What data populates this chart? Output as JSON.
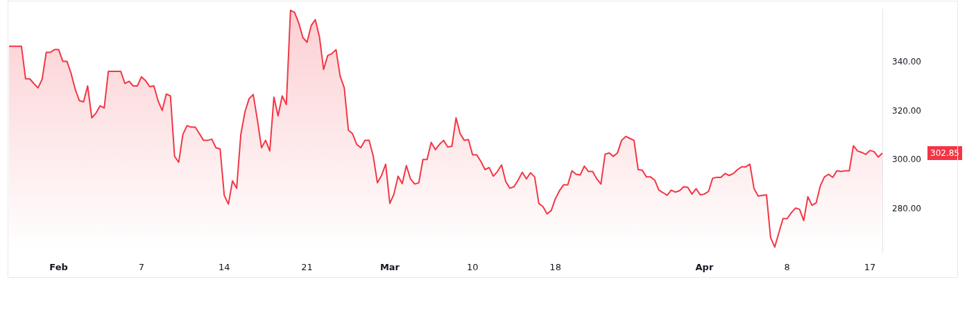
{
  "chart_data": {
    "type": "area",
    "categories": [
      null,
      null,
      null,
      null,
      null,
      null,
      null,
      null,
      null,
      null,
      null,
      null,
      "Feb",
      null,
      null,
      null,
      null,
      null,
      null,
      null,
      null,
      null,
      null,
      null,
      null,
      null,
      null,
      null,
      null,
      null,
      null,
      null,
      "7",
      null,
      null,
      null,
      null,
      null,
      null,
      null,
      null,
      null,
      null,
      null,
      null,
      null,
      null,
      null,
      null,
      null,
      null,
      null,
      "14",
      null,
      null,
      null,
      null,
      null,
      null,
      null,
      null,
      null,
      null,
      null,
      null,
      null,
      null,
      null,
      null,
      null,
      null,
      null,
      "21",
      null,
      null,
      null,
      null,
      null,
      null,
      null,
      null,
      null,
      null,
      null,
      null,
      null,
      null,
      null,
      null,
      null,
      null,
      null,
      "Mar",
      null,
      null,
      null,
      null,
      null,
      null,
      null,
      null,
      null,
      null,
      null,
      null,
      null,
      null,
      null,
      null,
      null,
      null,
      null,
      "10",
      null,
      null,
      null,
      null,
      null,
      null,
      null,
      null,
      null,
      null,
      null,
      null,
      null,
      null,
      null,
      null,
      null,
      null,
      null,
      "18",
      null,
      null,
      null,
      null,
      null,
      null,
      null,
      null,
      null,
      null,
      null,
      null,
      null,
      null,
      null,
      null,
      null,
      null,
      null,
      null,
      null,
      null,
      null,
      null,
      null,
      null,
      null,
      null,
      null,
      null,
      null,
      null,
      null,
      null,
      null,
      "Apr",
      null,
      null,
      null,
      null,
      null,
      null,
      null,
      null,
      null,
      null,
      null,
      null,
      null,
      null,
      null,
      null,
      null,
      null,
      null,
      "8",
      null,
      null,
      null,
      null,
      null,
      null,
      null,
      null,
      null,
      null,
      null,
      null,
      null,
      null,
      null,
      null,
      null,
      null,
      null,
      "17",
      null,
      null,
      null
    ],
    "series": [
      {
        "color": "#f23645",
        "values": [
          346.5,
          346.5,
          346.5,
          346.5,
          333.2,
          333.2,
          331.3,
          329.5,
          333.0,
          344.0,
          344.0,
          345.1,
          345.1,
          340.3,
          340.3,
          335.4,
          328.9,
          324.3,
          323.8,
          330.3,
          317.3,
          319.2,
          322.2,
          321.3,
          336.2,
          336.2,
          336.2,
          336.2,
          331.3,
          332.2,
          330.3,
          330.3,
          334.0,
          332.4,
          330.0,
          330.3,
          324.3,
          320.3,
          327.0,
          326.2,
          301.6,
          299.2,
          310.5,
          314.1,
          313.5,
          313.5,
          310.8,
          308.1,
          308.1,
          308.6,
          305.1,
          304.6,
          285.7,
          282.1,
          291.6,
          288.6,
          310.5,
          319.7,
          325.1,
          326.8,
          316.5,
          305.1,
          308.1,
          303.8,
          325.7,
          318.1,
          326.2,
          322.7,
          361.1,
          360.3,
          355.9,
          350.0,
          348.1,
          354.9,
          357.3,
          350.3,
          337.0,
          342.7,
          343.5,
          345.1,
          334.3,
          329.5,
          312.2,
          310.8,
          306.5,
          305.1,
          308.1,
          308.1,
          301.6,
          290.8,
          293.8,
          298.4,
          282.4,
          286.2,
          293.5,
          290.5,
          297.8,
          292.4,
          290.3,
          290.8,
          300.3,
          300.3,
          307.3,
          304.3,
          306.5,
          308.1,
          305.4,
          305.7,
          317.3,
          310.8,
          308.1,
          308.4,
          302.2,
          302.2,
          299.5,
          296.2,
          297.0,
          293.5,
          295.4,
          298.1,
          291.3,
          288.6,
          289.2,
          291.9,
          295.1,
          292.4,
          294.9,
          293.2,
          282.4,
          281.1,
          278.1,
          279.5,
          284.3,
          287.6,
          290.0,
          290.0,
          295.7,
          294.3,
          294.0,
          297.6,
          295.4,
          295.4,
          292.4,
          290.3,
          302.4,
          303.0,
          301.6,
          303.0,
          308.1,
          309.7,
          308.9,
          308.1,
          296.2,
          295.9,
          293.2,
          293.2,
          291.9,
          287.8,
          286.8,
          285.7,
          287.8,
          287.0,
          287.6,
          289.2,
          288.9,
          286.2,
          288.4,
          285.9,
          286.2,
          287.3,
          292.7,
          293.0,
          293.0,
          294.6,
          293.8,
          294.6,
          296.2,
          297.3,
          297.3,
          298.4,
          288.4,
          285.4,
          285.7,
          285.9,
          268.4,
          264.6,
          270.5,
          276.2,
          276.2,
          278.6,
          280.5,
          280.0,
          275.4,
          285.1,
          281.6,
          282.6,
          289.5,
          293.2,
          294.3,
          293.0,
          295.7,
          295.4,
          295.7,
          295.7,
          305.9,
          303.8,
          303.2,
          302.4,
          304.0,
          303.5,
          301.3,
          302.9
        ]
      }
    ],
    "ylim": [
      262.4,
      361.6
    ],
    "yticks": [
      {
        "value": 280,
        "label": "280.00"
      },
      {
        "value": 300,
        "label": "300.00"
      },
      {
        "value": 320,
        "label": "320.00"
      },
      {
        "value": 340,
        "label": "340.00"
      }
    ],
    "marker": "none",
    "annotations": [
      "302.85"
    ]
  }
}
